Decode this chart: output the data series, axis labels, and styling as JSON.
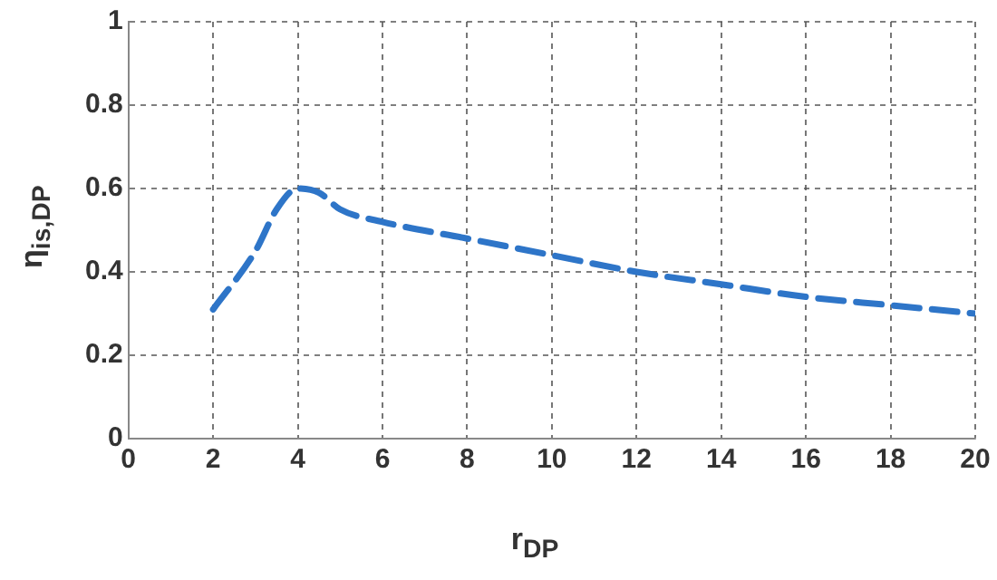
{
  "chart_data": {
    "type": "line",
    "xlabel": "r$_{DP}$",
    "ylabel": "η$_{is,DP}$",
    "xlim": [
      0,
      20
    ],
    "xticks": [
      0,
      2,
      4,
      6,
      8,
      10,
      12,
      14,
      16,
      18,
      20
    ],
    "ylim": [
      0,
      1
    ],
    "yticks": [
      0,
      0.2,
      0.4,
      0.6,
      0.8,
      1
    ],
    "grid": true,
    "legend": false,
    "marker": "none",
    "line_style": "dashed",
    "series": [
      {
        "color": "#2e75c8",
        "x": [
          2,
          3,
          3.5,
          4,
          4.5,
          5,
          6,
          8,
          10,
          12,
          14,
          16,
          18,
          20
        ],
        "values": [
          0.31,
          0.45,
          0.55,
          0.6,
          0.59,
          0.55,
          0.52,
          0.48,
          0.44,
          0.4,
          0.37,
          0.34,
          0.32,
          0.3
        ]
      }
    ]
  }
}
